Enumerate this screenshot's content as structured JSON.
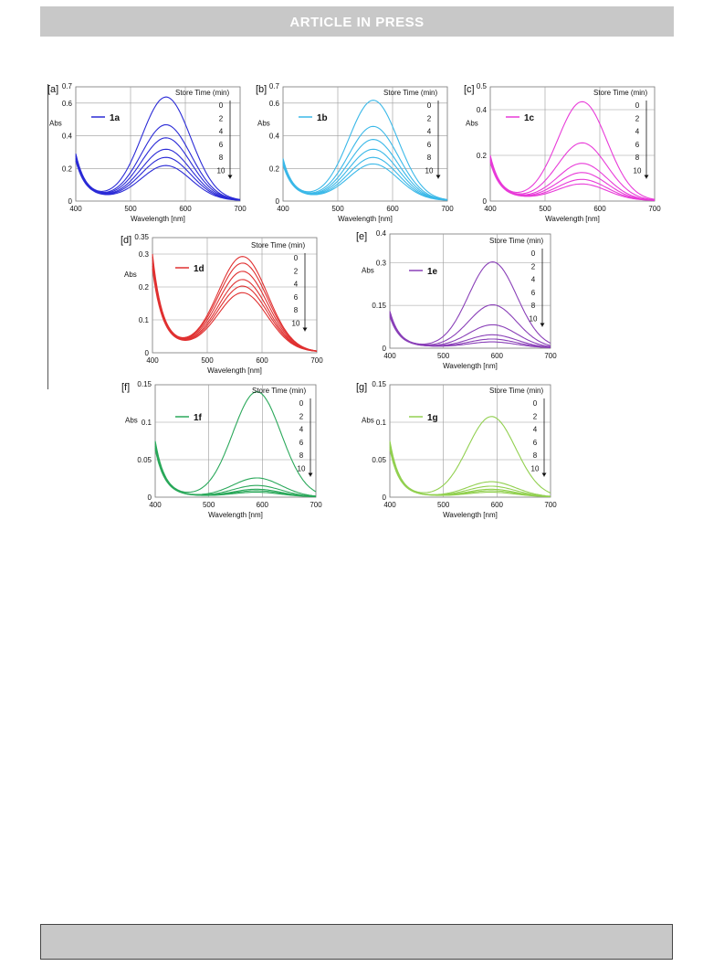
{
  "header": {
    "banner_text": "ARTICLE  IN  PRESS"
  },
  "chart_data": [
    {
      "panel_label": "[a]",
      "type": "line",
      "legend": "1a",
      "color": "#2a2ad6",
      "ylabel": "Abs",
      "xlabel": "Wavelength [nm]",
      "xlim": [
        400,
        700
      ],
      "ylim": [
        0,
        0.7
      ],
      "xticks": [
        400,
        500,
        600,
        700
      ],
      "yticks": [
        0,
        0.2,
        0.4,
        0.6
      ],
      "ytop_label": "0.7",
      "series_title": "Store Time (min)",
      "series_names": [
        "0",
        "2",
        "4",
        "6",
        "8",
        "10"
      ],
      "peak_x": 565,
      "peak_values": [
        0.63,
        0.46,
        0.38,
        0.31,
        0.26,
        0.21
      ],
      "start_y": 0.29,
      "min_y": 0.03
    },
    {
      "panel_label": "[b]",
      "type": "line",
      "legend": "1b",
      "color": "#3ab8e8",
      "ylabel": "Abs",
      "xlabel": "Wavelength [nm]",
      "xlim": [
        400,
        700
      ],
      "ylim": [
        0,
        0.7
      ],
      "xticks": [
        400,
        500,
        600,
        700
      ],
      "yticks": [
        0,
        0.2,
        0.4,
        0.6
      ],
      "ytop_label": "0.7",
      "series_title": "Store Time (min)",
      "series_names": [
        "0",
        "2",
        "4",
        "6",
        "8",
        "10"
      ],
      "peak_x": 565,
      "peak_values": [
        0.61,
        0.45,
        0.37,
        0.31,
        0.26,
        0.22
      ],
      "start_y": 0.26,
      "min_y": 0.03
    },
    {
      "panel_label": "[c]",
      "type": "line",
      "legend": "1c",
      "color": "#e83ad8",
      "ylabel": "Abs",
      "xlabel": "Wavelength [nm]",
      "xlim": [
        400,
        700
      ],
      "ylim": [
        0,
        0.5
      ],
      "xticks": [
        400,
        500,
        600,
        700
      ],
      "yticks": [
        0,
        0.2,
        0.4
      ],
      "ytop_label": "0.5",
      "series_title": "Store Time (min)",
      "series_names": [
        "0",
        "2",
        "4",
        "6",
        "8",
        "10"
      ],
      "peak_x": 568,
      "peak_values": [
        0.43,
        0.25,
        0.16,
        0.12,
        0.09,
        0.07
      ],
      "start_y": 0.2,
      "min_y": 0.02
    },
    {
      "panel_label": "[d]",
      "type": "line",
      "legend": "1d",
      "color": "#e03030",
      "ylabel": "Abs",
      "xlabel": "Wavelength [nm]",
      "xlim": [
        400,
        700
      ],
      "ylim": [
        0,
        0.35
      ],
      "xticks": [
        400,
        500,
        600,
        700
      ],
      "yticks": [
        0,
        0.1,
        0.2,
        0.3
      ],
      "ytop_label": "0.35",
      "series_title": "Store Time (min)",
      "series_names": [
        "0",
        "2",
        "4",
        "6",
        "8",
        "10"
      ],
      "peak_x": 565,
      "peak_values": [
        0.285,
        0.265,
        0.24,
        0.215,
        0.195,
        0.175
      ],
      "start_y": 0.3,
      "min_y": 0.03
    },
    {
      "panel_label": "[e]",
      "type": "line",
      "legend": "1e",
      "color": "#8a40b8",
      "ylabel": "Abs",
      "xlabel": "Wavelength [nm]",
      "xlim": [
        400,
        700
      ],
      "ylim": [
        0,
        0.4
      ],
      "xticks": [
        400,
        500,
        600,
        700
      ],
      "yticks": [
        0,
        0.15,
        0.3
      ],
      "ytop_label": "0.4",
      "series_title": "Store Time (min)",
      "series_names": [
        "0",
        "2",
        "4",
        "6",
        "8",
        "10"
      ],
      "peak_x": 592,
      "peak_values": [
        0.3,
        0.15,
        0.08,
        0.045,
        0.03,
        0.02
      ],
      "start_y": 0.13,
      "min_y": 0.01
    },
    {
      "panel_label": "[f]",
      "type": "line",
      "legend": "1f",
      "color": "#2aa85a",
      "ylabel": "Abs",
      "xlabel": "Wavelength [nm]",
      "xlim": [
        400,
        700
      ],
      "ylim": [
        0,
        0.15
      ],
      "xticks": [
        400,
        500,
        600,
        700
      ],
      "yticks": [
        0,
        0.05,
        0.1
      ],
      "ytop_label": "0.15",
      "series_title": "Store Time (min)",
      "series_names": [
        "0",
        "2",
        "4",
        "6",
        "8",
        "10"
      ],
      "peak_x": 590,
      "peak_values": [
        0.14,
        0.025,
        0.015,
        0.01,
        0.008,
        0.006
      ],
      "start_y": 0.075,
      "min_y": 0.003
    },
    {
      "panel_label": "[g]",
      "type": "line",
      "legend": "1g",
      "color": "#92d050",
      "ylabel": "Abs",
      "xlabel": "Wavelength [nm]",
      "xlim": [
        400,
        700
      ],
      "ylim": [
        0,
        0.15
      ],
      "xticks": [
        400,
        500,
        600,
        700
      ],
      "yticks": [
        0,
        0.05,
        0.1
      ],
      "ytop_label": "0.15",
      "series_title": "Store Time (min)",
      "series_names": [
        "0",
        "2",
        "4",
        "6",
        "8",
        "10"
      ],
      "peak_x": 590,
      "peak_values": [
        0.107,
        0.02,
        0.014,
        0.01,
        0.008,
        0.006
      ],
      "start_y": 0.075,
      "min_y": 0.003
    }
  ]
}
